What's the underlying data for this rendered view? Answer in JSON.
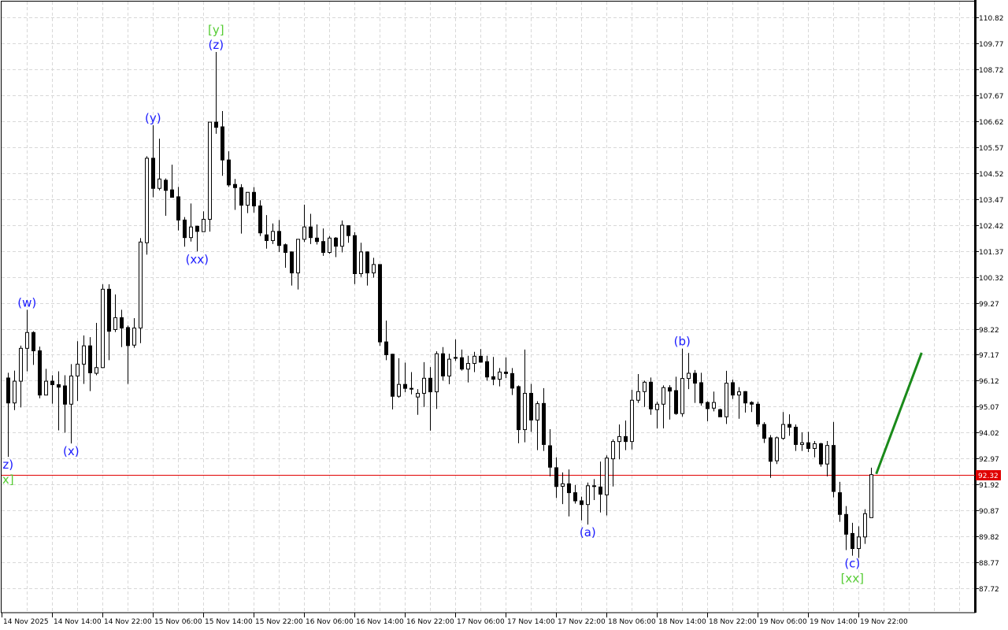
{
  "chart_data": {
    "type": "candlestick",
    "title": "",
    "xlabel": "",
    "ylabel": "",
    "ylim": [
      87.1,
      111.45
    ],
    "grid": true,
    "y_ticks": [
      "110.82",
      "109.77",
      "108.72",
      "107.67",
      "106.62",
      "105.57",
      "104.52",
      "103.47",
      "102.42",
      "101.37",
      "100.32",
      "99.27",
      "98.22",
      "97.17",
      "96.12",
      "95.07",
      "94.02",
      "92.97",
      "91.92",
      "90.87",
      "89.82",
      "88.77",
      "87.72"
    ],
    "x_ticks": [
      "14 Nov 2025",
      "14 Nov 14:00",
      "14 Nov 22:00",
      "15 Nov 06:00",
      "15 Nov 14:00",
      "15 Nov 22:00",
      "16 Nov 06:00",
      "16 Nov 14:00",
      "16 Nov 22:00",
      "17 Nov 06:00",
      "17 Nov 14:00",
      "17 Nov 22:00",
      "18 Nov 06:00",
      "18 Nov 14:00",
      "18 Nov 22:00",
      "19 Nov 06:00",
      "19 Nov 14:00",
      "19 Nov 22:00"
    ],
    "bars_per_x_tick": 8,
    "ohlc_columns": [
      "open",
      "high",
      "low",
      "close"
    ],
    "candles": [
      [
        96.23,
        96.44,
        93.04,
        95.22
      ],
      [
        95.22,
        96.53,
        94.93,
        96.1
      ],
      [
        96.1,
        97.54,
        95.04,
        97.43
      ],
      [
        97.43,
        98.99,
        96.5,
        98.07
      ],
      [
        98.07,
        98.12,
        96.76,
        97.33
      ],
      [
        97.33,
        97.5,
        95.41,
        95.54
      ],
      [
        95.54,
        96.6,
        95.54,
        96.1
      ],
      [
        96.1,
        96.34,
        95.19,
        95.96
      ],
      [
        95.96,
        96.5,
        94.11,
        95.86
      ],
      [
        95.91,
        96.34,
        94.02,
        95.17
      ],
      [
        95.17,
        96.79,
        93.58,
        96.31
      ],
      [
        96.31,
        97.72,
        95.3,
        96.79
      ],
      [
        96.79,
        97.95,
        95.99,
        97.53
      ],
      [
        97.53,
        97.88,
        95.7,
        96.44
      ],
      [
        96.42,
        98.46,
        96.34,
        96.65
      ],
      [
        96.65,
        100.02,
        96.63,
        99.82
      ],
      [
        99.82,
        100.02,
        96.95,
        98.12
      ],
      [
        98.19,
        99.61,
        98.09,
        98.67
      ],
      [
        98.67,
        98.99,
        97.48,
        98.25
      ],
      [
        98.27,
        98.35,
        95.99,
        97.54
      ],
      [
        97.56,
        98.65,
        97.45,
        98.25
      ],
      [
        98.25,
        101.89,
        97.64,
        101.73
      ],
      [
        101.7,
        105.2,
        101.22,
        105.12
      ],
      [
        105.12,
        106.45,
        103.54,
        103.9
      ],
      [
        103.9,
        105.91,
        103.82,
        104.28
      ],
      [
        104.23,
        104.3,
        102.79,
        103.82
      ],
      [
        103.84,
        104.86,
        103.54,
        103.54
      ],
      [
        103.56,
        103.96,
        102.2,
        102.62
      ],
      [
        102.62,
        102.74,
        101.54,
        101.91
      ],
      [
        101.91,
        103.29,
        101.75,
        102.34
      ],
      [
        102.37,
        102.39,
        101.35,
        102.16
      ],
      [
        102.15,
        102.97,
        102.15,
        102.65
      ],
      [
        102.65,
        106.58,
        102.15,
        106.58
      ],
      [
        106.58,
        109.42,
        106.11,
        106.37
      ],
      [
        106.39,
        107.03,
        104.41,
        105.05
      ],
      [
        105.05,
        105.4,
        103.96,
        104.04
      ],
      [
        104.06,
        104.28,
        103.03,
        103.93
      ],
      [
        103.93,
        104.07,
        102.07,
        103.22
      ],
      [
        103.22,
        103.74,
        102.9,
        103.74
      ],
      [
        103.74,
        103.95,
        102.92,
        103.19
      ],
      [
        103.19,
        103.42,
        101.97,
        102.1
      ],
      [
        102.02,
        102.82,
        101.46,
        101.79
      ],
      [
        101.79,
        102.48,
        101.65,
        102.16
      ],
      [
        102.16,
        102.62,
        101.33,
        101.59
      ],
      [
        101.62,
        101.67,
        100.69,
        101.31
      ],
      [
        101.33,
        101.35,
        99.97,
        100.48
      ],
      [
        100.48,
        101.84,
        99.81,
        101.84
      ],
      [
        101.84,
        103.24,
        101.73,
        102.34
      ],
      [
        102.34,
        102.87,
        101.65,
        101.91
      ],
      [
        101.89,
        102.44,
        101.63,
        101.75
      ],
      [
        101.75,
        102.28,
        101.17,
        101.31
      ],
      [
        101.31,
        101.97,
        101.25,
        101.89
      ],
      [
        101.89,
        101.93,
        101.12,
        101.56
      ],
      [
        101.56,
        102.6,
        101.31,
        102.41
      ],
      [
        102.39,
        102.41,
        101.7,
        101.99
      ],
      [
        101.99,
        102.13,
        100.03,
        100.45
      ],
      [
        100.45,
        101.7,
        100.32,
        101.33
      ],
      [
        101.33,
        101.35,
        99.97,
        100.48
      ],
      [
        100.48,
        101.09,
        100.29,
        100.82
      ],
      [
        100.82,
        100.82,
        97.53,
        97.69
      ],
      [
        97.69,
        98.55,
        96.95,
        97.17
      ],
      [
        97.19,
        97.21,
        94.96,
        95.49
      ],
      [
        95.49,
        97.03,
        95.43,
        95.97
      ],
      [
        95.97,
        96.85,
        95.65,
        95.81
      ],
      [
        95.81,
        96.47,
        95.57,
        95.79
      ],
      [
        95.46,
        95.78,
        94.74,
        95.61
      ],
      [
        95.61,
        96.87,
        95.06,
        96.22
      ],
      [
        96.22,
        96.67,
        94.1,
        95.67
      ],
      [
        95.67,
        97.31,
        94.98,
        97.21
      ],
      [
        97.21,
        97.48,
        96.12,
        96.31
      ],
      [
        96.31,
        97.21,
        95.98,
        96.99
      ],
      [
        97.05,
        97.79,
        96.92,
        97.06
      ],
      [
        97.05,
        97.38,
        96.53,
        96.59
      ],
      [
        96.59,
        97.13,
        96.05,
        96.82
      ],
      [
        96.82,
        97.29,
        96.47,
        97.11
      ],
      [
        97.11,
        97.4,
        96.85,
        96.87
      ],
      [
        96.89,
        97.13,
        96.12,
        96.27
      ],
      [
        96.28,
        97.08,
        95.94,
        96.18
      ],
      [
        96.18,
        96.63,
        95.89,
        96.47
      ],
      [
        96.47,
        97.06,
        96.23,
        96.41
      ],
      [
        96.41,
        96.63,
        95.54,
        95.82
      ],
      [
        95.88,
        95.93,
        93.59,
        94.14
      ],
      [
        94.14,
        97.38,
        93.63,
        95.61
      ],
      [
        95.61,
        95.99,
        94.05,
        94.53
      ],
      [
        94.53,
        95.29,
        93.31,
        95.19
      ],
      [
        95.2,
        95.82,
        93.28,
        93.54
      ],
      [
        93.49,
        94.16,
        92.25,
        92.62
      ],
      [
        92.6,
        93.02,
        91.38,
        91.84
      ],
      [
        91.85,
        92.41,
        91.13,
        91.95
      ],
      [
        91.95,
        92.53,
        90.63,
        91.59
      ],
      [
        91.59,
        91.9,
        91.15,
        91.26
      ],
      [
        91.26,
        91.43,
        90.47,
        91.11
      ],
      [
        91.11,
        92.0,
        90.3,
        91.87
      ],
      [
        91.87,
        92.14,
        91.29,
        91.85
      ],
      [
        91.82,
        92.85,
        90.79,
        91.53
      ],
      [
        91.5,
        93.1,
        90.67,
        92.99
      ],
      [
        92.96,
        93.75,
        91.84,
        93.66
      ],
      [
        93.66,
        94.35,
        92.94,
        93.86
      ],
      [
        93.86,
        94.51,
        93.31,
        93.66
      ],
      [
        93.66,
        95.75,
        93.34,
        95.33
      ],
      [
        95.33,
        96.39,
        95.22,
        95.68
      ],
      [
        95.68,
        96.12,
        95.06,
        96.06
      ],
      [
        96.06,
        96.25,
        94.74,
        94.98
      ],
      [
        94.95,
        95.27,
        94.19,
        95.17
      ],
      [
        95.17,
        95.93,
        94.19,
        95.84
      ],
      [
        95.84,
        95.94,
        94.55,
        95.7
      ],
      [
        95.72,
        96.28,
        94.74,
        94.79
      ],
      [
        94.79,
        97.42,
        94.67,
        96.21
      ],
      [
        96.21,
        97.24,
        95.78,
        96.42
      ],
      [
        96.42,
        96.55,
        95.22,
        96.02
      ],
      [
        96.04,
        96.44,
        95.11,
        95.22
      ],
      [
        95.24,
        95.29,
        94.48,
        94.99
      ],
      [
        95.01,
        95.68,
        94.88,
        95.24
      ],
      [
        94.95,
        94.99,
        94.66,
        94.66
      ],
      [
        94.66,
        96.52,
        94.37,
        96.02
      ],
      [
        96.04,
        96.16,
        95.38,
        95.54
      ],
      [
        95.54,
        95.86,
        94.58,
        95.67
      ],
      [
        95.68,
        95.7,
        94.83,
        95.22
      ],
      [
        95.24,
        95.29,
        94.85,
        95.17
      ],
      [
        95.17,
        95.27,
        94.26,
        94.37
      ],
      [
        94.35,
        94.44,
        93.6,
        93.79
      ],
      [
        93.81,
        93.92,
        92.19,
        92.86
      ],
      [
        92.88,
        93.86,
        92.75,
        93.81
      ],
      [
        93.79,
        94.85,
        93.73,
        94.35
      ],
      [
        94.35,
        94.76,
        93.89,
        94.24
      ],
      [
        94.24,
        94.35,
        93.28,
        93.54
      ],
      [
        93.54,
        94.03,
        93.28,
        93.61
      ],
      [
        93.61,
        94.05,
        93.23,
        93.38
      ],
      [
        93.38,
        93.68,
        93.02,
        93.57
      ],
      [
        93.57,
        93.61,
        92.64,
        92.75
      ],
      [
        92.75,
        93.68,
        92.25,
        93.5
      ],
      [
        93.5,
        94.45,
        91.4,
        91.64
      ],
      [
        91.59,
        92.03,
        90.41,
        90.71
      ],
      [
        90.71,
        91.05,
        89.27,
        89.91
      ],
      [
        89.94,
        90.37,
        89.04,
        89.33
      ],
      [
        89.33,
        90.23,
        88.95,
        89.8
      ],
      [
        89.8,
        90.92,
        89.52,
        90.74
      ],
      [
        90.58,
        92.6,
        90.58,
        92.32
      ]
    ],
    "current_price": {
      "value": 92.32,
      "label": "92.32",
      "color": "#e00000"
    },
    "projection": {
      "from_bar": 138.8,
      "from_price": 92.35,
      "to_bar": 146,
      "to_price": 97.25,
      "color": "#1a8a1a"
    },
    "wave_labels": [
      {
        "text": "z)",
        "bar": 1,
        "position": "below",
        "stack": 0,
        "color": "#1a1aff"
      },
      {
        "text": "x]",
        "bar": 1,
        "position": "below",
        "stack": 1,
        "color": "#55cc33"
      },
      {
        "text": "(w)",
        "bar": 4,
        "position": "above",
        "stack": 0,
        "color": "#1a1aff"
      },
      {
        "text": "(x)",
        "bar": 11,
        "position": "below",
        "stack": 0,
        "color": "#1a1aff"
      },
      {
        "text": "(y)",
        "bar": 24,
        "position": "above",
        "stack": 0,
        "color": "#1a1aff"
      },
      {
        "text": "(xx)",
        "bar": 31,
        "position": "below",
        "stack": 0,
        "color": "#1a1aff"
      },
      {
        "text": "(z)",
        "bar": 34,
        "position": "above",
        "stack": 0,
        "color": "#1a1aff"
      },
      {
        "text": "[y]",
        "bar": 34,
        "position": "above",
        "stack": 1,
        "color": "#55cc33"
      },
      {
        "text": "(a)",
        "bar": 93,
        "position": "below",
        "stack": 0,
        "color": "#1a1aff"
      },
      {
        "text": "(b)",
        "bar": 108,
        "position": "above",
        "stack": 0,
        "color": "#1a1aff"
      },
      {
        "text": "(c)",
        "bar": 135,
        "position": "below",
        "stack": 0,
        "color": "#1a1aff"
      },
      {
        "text": "[xx]",
        "bar": 135,
        "position": "below",
        "stack": 1,
        "color": "#55cc33"
      }
    ],
    "colors": {
      "bull_fill": "#ffffff",
      "bear_fill": "#000000",
      "outline": "#000000",
      "grid": "#d8d8d8"
    }
  }
}
